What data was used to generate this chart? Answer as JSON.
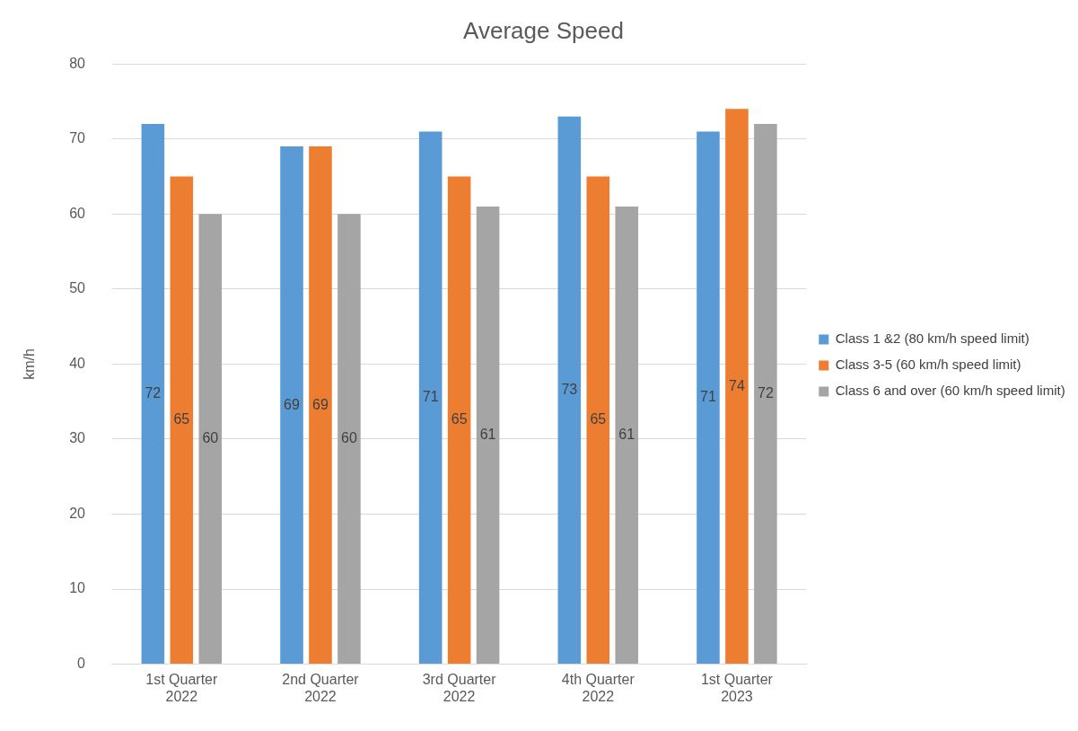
{
  "chart_data": {
    "type": "bar",
    "title": "Average Speed",
    "ylabel": "km/h",
    "categories": [
      "1st Quarter 2022",
      "2nd Quarter 2022",
      "3rd Quarter 2022",
      "4th Quarter 2022",
      "1st Quarter 2023"
    ],
    "series": [
      {
        "name": "Class 1 &2 (80 km/h speed limit)",
        "color": "#5b9bd5",
        "values": [
          72,
          69,
          71,
          73,
          71
        ]
      },
      {
        "name": "Class 3-5 (60 km/h speed limit)",
        "color": "#ed7d31",
        "values": [
          65,
          69,
          65,
          65,
          74
        ]
      },
      {
        "name": "Class 6 and over (60 km/h speed limit)",
        "color": "#a5a5a5",
        "values": [
          60,
          60,
          61,
          61,
          72
        ]
      }
    ],
    "ylim": [
      0,
      80
    ],
    "yticks": [
      0,
      10,
      20,
      30,
      40,
      50,
      60,
      70,
      80
    ],
    "grid": "y",
    "legend": "right",
    "data_labels": true
  }
}
